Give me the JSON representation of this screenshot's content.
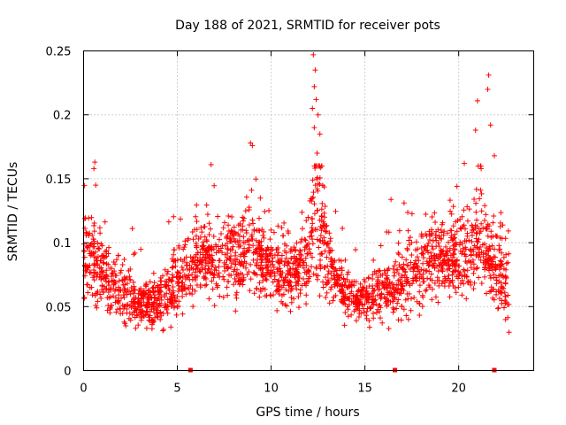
{
  "chart_data": {
    "type": "scatter",
    "title": "Day 188 of 2021, SRMTID for receiver pots",
    "xlabel": "GPS time / hours",
    "ylabel": "SRMTID / TECUs",
    "xlim": [
      0,
      24
    ],
    "ylim": [
      0,
      0.25
    ],
    "xticks": [
      "0",
      "5",
      "10",
      "15",
      "20"
    ],
    "yticks": [
      "0",
      "0.05",
      "0.1",
      "0.15",
      "0.2",
      "0.25"
    ],
    "xtick_values": [
      0,
      5,
      10,
      15,
      20
    ],
    "ytick_values": [
      0,
      0.05,
      0.1,
      0.15,
      0.2,
      0.25
    ],
    "grid": true,
    "marker": "plus",
    "color": "#ff0000",
    "trend": [
      {
        "x": 0.0,
        "y": 0.085,
        "spread": 0.02
      },
      {
        "x": 0.5,
        "y": 0.09,
        "spread": 0.025
      },
      {
        "x": 1.0,
        "y": 0.075,
        "spread": 0.02
      },
      {
        "x": 2.0,
        "y": 0.06,
        "spread": 0.015
      },
      {
        "x": 3.0,
        "y": 0.05,
        "spread": 0.012
      },
      {
        "x": 4.0,
        "y": 0.055,
        "spread": 0.013
      },
      {
        "x": 5.0,
        "y": 0.07,
        "spread": 0.02
      },
      {
        "x": 6.0,
        "y": 0.09,
        "spread": 0.02
      },
      {
        "x": 7.0,
        "y": 0.085,
        "spread": 0.02
      },
      {
        "x": 8.0,
        "y": 0.09,
        "spread": 0.022
      },
      {
        "x": 9.0,
        "y": 0.095,
        "spread": 0.022
      },
      {
        "x": 10.0,
        "y": 0.08,
        "spread": 0.018
      },
      {
        "x": 11.0,
        "y": 0.075,
        "spread": 0.018
      },
      {
        "x": 12.0,
        "y": 0.085,
        "spread": 0.02
      },
      {
        "x": 12.4,
        "y": 0.13,
        "spread": 0.05
      },
      {
        "x": 13.0,
        "y": 0.085,
        "spread": 0.02
      },
      {
        "x": 14.0,
        "y": 0.06,
        "spread": 0.012
      },
      {
        "x": 15.0,
        "y": 0.055,
        "spread": 0.012
      },
      {
        "x": 16.0,
        "y": 0.06,
        "spread": 0.015
      },
      {
        "x": 17.0,
        "y": 0.07,
        "spread": 0.02
      },
      {
        "x": 18.0,
        "y": 0.08,
        "spread": 0.02
      },
      {
        "x": 19.0,
        "y": 0.085,
        "spread": 0.02
      },
      {
        "x": 20.0,
        "y": 0.09,
        "spread": 0.022
      },
      {
        "x": 21.0,
        "y": 0.1,
        "spread": 0.025
      },
      {
        "x": 22.0,
        "y": 0.08,
        "spread": 0.025
      },
      {
        "x": 22.7,
        "y": 0.065,
        "spread": 0.02
      }
    ],
    "outliers": [
      {
        "x": 0.6,
        "y": 0.163
      },
      {
        "x": 0.55,
        "y": 0.158
      },
      {
        "x": 0.65,
        "y": 0.145
      },
      {
        "x": 8.9,
        "y": 0.178
      },
      {
        "x": 9.0,
        "y": 0.176
      },
      {
        "x": 6.8,
        "y": 0.161
      },
      {
        "x": 12.25,
        "y": 0.247
      },
      {
        "x": 12.35,
        "y": 0.235
      },
      {
        "x": 12.3,
        "y": 0.222
      },
      {
        "x": 12.4,
        "y": 0.212
      },
      {
        "x": 12.2,
        "y": 0.205
      },
      {
        "x": 12.5,
        "y": 0.2
      },
      {
        "x": 12.3,
        "y": 0.19
      },
      {
        "x": 12.6,
        "y": 0.185
      },
      {
        "x": 12.45,
        "y": 0.17
      },
      {
        "x": 21.6,
        "y": 0.231
      },
      {
        "x": 21.55,
        "y": 0.22
      },
      {
        "x": 21.0,
        "y": 0.211
      },
      {
        "x": 21.7,
        "y": 0.192
      },
      {
        "x": 20.9,
        "y": 0.188
      },
      {
        "x": 21.9,
        "y": 0.168
      },
      {
        "x": 20.3,
        "y": 0.162
      },
      {
        "x": 21.2,
        "y": 0.158
      }
    ],
    "data_gaps_hours": [
      5.7,
      16.6,
      21.9
    ],
    "time_end": 22.7
  }
}
